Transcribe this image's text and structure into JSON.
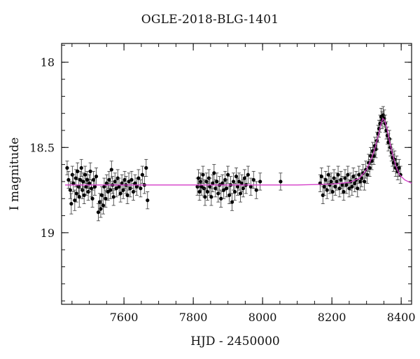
{
  "chart_data": {
    "type": "scatter",
    "title": "OGLE-2018-BLG-1401",
    "xlabel": "HJD - 2450000",
    "ylabel": "I magnitude",
    "xlim": [
      7420,
      8430
    ],
    "ylim": [
      19.42,
      17.89
    ],
    "y_inverted": true,
    "x_ticks": [
      7600,
      7800,
      8000,
      8200,
      8400
    ],
    "y_ticks": [
      18,
      18.5,
      19
    ],
    "x_tick_labels": [
      "7600",
      "7800",
      "8000",
      "8200",
      "8400"
    ],
    "y_tick_labels": [
      "18",
      "18.5",
      "19"
    ],
    "grid": false,
    "model_color": "#d43cc8",
    "point_color": "#000000",
    "baseline_mag": 18.72,
    "peak": {
      "t0": 8347,
      "peak_mag": 18.33,
      "tE": 18
    },
    "model_curve": [
      [
        7430,
        18.72
      ],
      [
        8100,
        18.72
      ],
      [
        8200,
        18.715
      ],
      [
        8250,
        18.705
      ],
      [
        8280,
        18.68
      ],
      [
        8300,
        18.63
      ],
      [
        8315,
        18.56
      ],
      [
        8325,
        18.5
      ],
      [
        8335,
        18.42
      ],
      [
        8342,
        18.36
      ],
      [
        8347,
        18.33
      ],
      [
        8352,
        18.34
      ],
      [
        8358,
        18.38
      ],
      [
        8365,
        18.45
      ],
      [
        8375,
        18.54
      ],
      [
        8385,
        18.61
      ],
      [
        8395,
        18.66
      ],
      [
        8410,
        18.69
      ],
      [
        8430,
        18.71
      ]
    ],
    "series": [
      {
        "points": [
          [
            7436,
            18.62,
            0.04
          ],
          [
            7440,
            18.69,
            0.05
          ],
          [
            7445,
            18.75,
            0.05
          ],
          [
            7448,
            18.83,
            0.06
          ],
          [
            7451,
            18.66,
            0.05
          ],
          [
            7454,
            18.71,
            0.05
          ],
          [
            7458,
            18.81,
            0.06
          ],
          [
            7461,
            18.68,
            0.05
          ],
          [
            7463,
            18.77,
            0.05
          ],
          [
            7466,
            18.64,
            0.05
          ],
          [
            7469,
            18.73,
            0.05
          ],
          [
            7471,
            18.79,
            0.06
          ],
          [
            7474,
            18.69,
            0.05
          ],
          [
            7477,
            18.62,
            0.05
          ],
          [
            7480,
            18.75,
            0.05
          ],
          [
            7482,
            18.7,
            0.05
          ],
          [
            7485,
            18.78,
            0.05
          ],
          [
            7488,
            18.66,
            0.05
          ],
          [
            7491,
            18.73,
            0.05
          ],
          [
            7494,
            18.69,
            0.05
          ],
          [
            7497,
            18.76,
            0.05
          ],
          [
            7500,
            18.71,
            0.05
          ],
          [
            7503,
            18.64,
            0.05
          ],
          [
            7506,
            18.74,
            0.05
          ],
          [
            7509,
            18.8,
            0.05
          ],
          [
            7512,
            18.69,
            0.05
          ],
          [
            7516,
            18.73,
            0.05
          ],
          [
            7520,
            18.67,
            0.05
          ],
          [
            7526,
            18.88,
            0.05
          ],
          [
            7530,
            18.82,
            0.05
          ],
          [
            7533,
            18.86,
            0.05
          ],
          [
            7536,
            18.78,
            0.05
          ],
          [
            7540,
            18.84,
            0.05
          ],
          [
            7543,
            18.73,
            0.05
          ],
          [
            7547,
            18.8,
            0.05
          ],
          [
            7550,
            18.71,
            0.05
          ],
          [
            7554,
            18.76,
            0.05
          ],
          [
            7557,
            18.69,
            0.05
          ],
          [
            7561,
            18.75,
            0.05
          ],
          [
            7564,
            18.63,
            0.05
          ],
          [
            7567,
            18.72,
            0.05
          ],
          [
            7570,
            18.79,
            0.05
          ],
          [
            7574,
            18.7,
            0.05
          ],
          [
            7578,
            18.74,
            0.05
          ],
          [
            7582,
            18.68,
            0.05
          ],
          [
            7586,
            18.73,
            0.05
          ],
          [
            7590,
            18.77,
            0.05
          ],
          [
            7594,
            18.71,
            0.05
          ],
          [
            7598,
            18.75,
            0.05
          ],
          [
            7602,
            18.69,
            0.05
          ],
          [
            7606,
            18.72,
            0.05
          ],
          [
            7610,
            18.78,
            0.05
          ],
          [
            7614,
            18.7,
            0.05
          ],
          [
            7618,
            18.74,
            0.05
          ],
          [
            7622,
            18.69,
            0.05
          ],
          [
            7627,
            18.76,
            0.05
          ],
          [
            7632,
            18.71,
            0.05
          ],
          [
            7637,
            18.73,
            0.05
          ],
          [
            7642,
            18.68,
            0.05
          ],
          [
            7648,
            18.74,
            0.05
          ],
          [
            7653,
            18.66,
            0.05
          ],
          [
            7659,
            18.72,
            0.05
          ],
          [
            7664,
            18.62,
            0.05
          ],
          [
            7668,
            18.81,
            0.05
          ],
          [
            7812,
            18.73,
            0.05
          ],
          [
            7815,
            18.68,
            0.05
          ],
          [
            7818,
            18.76,
            0.05
          ],
          [
            7821,
            18.7,
            0.05
          ],
          [
            7824,
            18.73,
            0.05
          ],
          [
            7828,
            18.66,
            0.05
          ],
          [
            7831,
            18.74,
            0.05
          ],
          [
            7834,
            18.79,
            0.05
          ],
          [
            7838,
            18.7,
            0.05
          ],
          [
            7841,
            18.76,
            0.05
          ],
          [
            7845,
            18.68,
            0.05
          ],
          [
            7848,
            18.73,
            0.05
          ],
          [
            7852,
            18.79,
            0.05
          ],
          [
            7856,
            18.71,
            0.05
          ],
          [
            7860,
            18.65,
            0.05
          ],
          [
            7864,
            18.74,
            0.05
          ],
          [
            7868,
            18.7,
            0.05
          ],
          [
            7872,
            18.77,
            0.05
          ],
          [
            7876,
            18.72,
            0.05
          ],
          [
            7880,
            18.8,
            0.05
          ],
          [
            7884,
            18.71,
            0.05
          ],
          [
            7888,
            18.75,
            0.05
          ],
          [
            7892,
            18.69,
            0.05
          ],
          [
            7896,
            18.74,
            0.05
          ],
          [
            7900,
            18.66,
            0.05
          ],
          [
            7904,
            18.78,
            0.05
          ],
          [
            7908,
            18.72,
            0.05
          ],
          [
            7912,
            18.82,
            0.05
          ],
          [
            7916,
            18.7,
            0.05
          ],
          [
            7920,
            18.76,
            0.05
          ],
          [
            7924,
            18.67,
            0.05
          ],
          [
            7928,
            18.73,
            0.05
          ],
          [
            7932,
            18.7,
            0.05
          ],
          [
            7936,
            18.77,
            0.05
          ],
          [
            7940,
            18.71,
            0.05
          ],
          [
            7944,
            18.74,
            0.05
          ],
          [
            7948,
            18.68,
            0.05
          ],
          [
            7952,
            18.72,
            0.05
          ],
          [
            7958,
            18.66,
            0.05
          ],
          [
            7966,
            18.73,
            0.05
          ],
          [
            7974,
            18.69,
            0.05
          ],
          [
            7982,
            18.75,
            0.05
          ],
          [
            7993,
            18.7,
            0.05
          ],
          [
            8052,
            18.7,
            0.05
          ],
          [
            8166,
            18.71,
            0.05
          ],
          [
            8170,
            18.67,
            0.05
          ],
          [
            8174,
            18.78,
            0.05
          ],
          [
            8178,
            18.73,
            0.05
          ],
          [
            8182,
            18.69,
            0.05
          ],
          [
            8186,
            18.75,
            0.05
          ],
          [
            8190,
            18.66,
            0.05
          ],
          [
            8194,
            18.72,
            0.05
          ],
          [
            8198,
            18.7,
            0.05
          ],
          [
            8202,
            18.76,
            0.05
          ],
          [
            8206,
            18.68,
            0.05
          ],
          [
            8210,
            18.73,
            0.05
          ],
          [
            8214,
            18.7,
            0.05
          ],
          [
            8218,
            18.66,
            0.05
          ],
          [
            8222,
            18.74,
            0.05
          ],
          [
            8226,
            18.69,
            0.05
          ],
          [
            8230,
            18.72,
            0.05
          ],
          [
            8234,
            18.76,
            0.05
          ],
          [
            8238,
            18.68,
            0.05
          ],
          [
            8242,
            18.72,
            0.05
          ],
          [
            8246,
            18.66,
            0.05
          ],
          [
            8250,
            18.74,
            0.05
          ],
          [
            8254,
            18.7,
            0.05
          ],
          [
            8258,
            18.73,
            0.05
          ],
          [
            8262,
            18.67,
            0.05
          ],
          [
            8266,
            18.71,
            0.05
          ],
          [
            8270,
            18.69,
            0.05
          ],
          [
            8274,
            18.74,
            0.05
          ],
          [
            8278,
            18.66,
            0.05
          ],
          [
            8282,
            18.7,
            0.05
          ],
          [
            8286,
            18.68,
            0.05
          ],
          [
            8290,
            18.65,
            0.05
          ],
          [
            8294,
            18.7,
            0.05
          ],
          [
            8298,
            18.63,
            0.05
          ],
          [
            8302,
            18.66,
            0.05
          ],
          [
            8306,
            18.59,
            0.05
          ],
          [
            8309,
            18.62,
            0.05
          ],
          [
            8312,
            18.55,
            0.05
          ],
          [
            8315,
            18.58,
            0.05
          ],
          [
            8318,
            18.52,
            0.05
          ],
          [
            8321,
            18.55,
            0.05
          ],
          [
            8324,
            18.49,
            0.05
          ],
          [
            8327,
            18.51,
            0.05
          ],
          [
            8330,
            18.46,
            0.05
          ],
          [
            8333,
            18.42,
            0.05
          ],
          [
            8336,
            18.39,
            0.05
          ],
          [
            8339,
            18.36,
            0.05
          ],
          [
            8342,
            18.32,
            0.05
          ],
          [
            8345,
            18.34,
            0.05
          ],
          [
            8348,
            18.31,
            0.05
          ],
          [
            8351,
            18.33,
            0.05
          ],
          [
            8354,
            18.36,
            0.05
          ],
          [
            8357,
            18.4,
            0.05
          ],
          [
            8360,
            18.43,
            0.05
          ],
          [
            8363,
            18.47,
            0.05
          ],
          [
            8366,
            18.45,
            0.05
          ],
          [
            8369,
            18.5,
            0.05
          ],
          [
            8372,
            18.53,
            0.05
          ],
          [
            8375,
            18.56,
            0.05
          ],
          [
            8378,
            18.59,
            0.05
          ],
          [
            8381,
            18.57,
            0.05
          ],
          [
            8384,
            18.62,
            0.05
          ],
          [
            8387,
            18.6,
            0.05
          ],
          [
            8390,
            18.64,
            0.05
          ],
          [
            8394,
            18.62,
            0.05
          ],
          [
            8398,
            18.66,
            0.05
          ]
        ]
      }
    ]
  }
}
